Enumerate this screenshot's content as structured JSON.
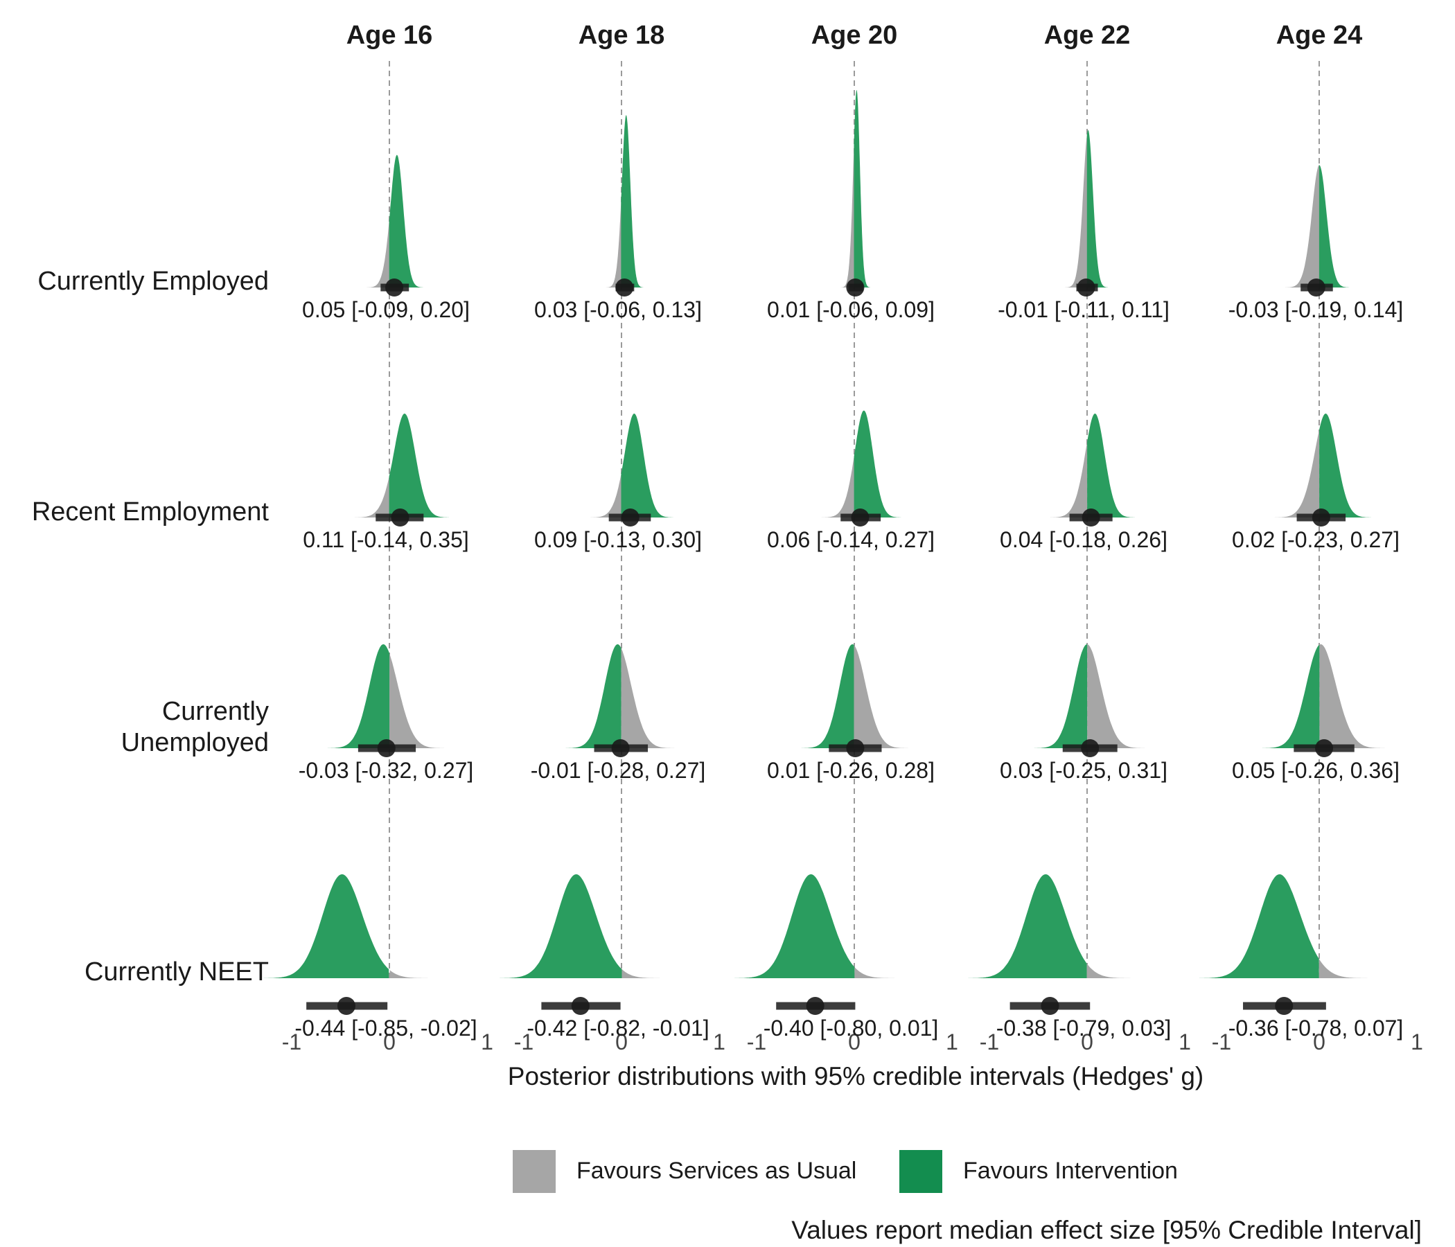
{
  "chart_data": {
    "type": "area",
    "panels": [
      "Age 16",
      "Age 18",
      "Age 20",
      "Age 22",
      "Age 24"
    ],
    "rows": [
      "Currently Employed",
      "Recent Employment",
      "Currently Unemployed",
      "Currently NEET"
    ],
    "xlabel": "Posterior distributions with 95% credible intervals (Hedges' g)",
    "xlim": [
      -1,
      1
    ],
    "x_ticks": [
      "-1",
      "0",
      "1"
    ],
    "caption": "Values report median effect size [95% Credible Interval]",
    "legend": {
      "position": "bottom",
      "items": [
        {
          "label": "Favours Services as Usual",
          "color": "#a6a6a6"
        },
        {
          "label": "Favours Intervention",
          "color": "#138d4f"
        }
      ]
    },
    "colors": {
      "services": "#a6a6a6",
      "intervention": "#2a9d5f",
      "reference_line": "#9a9a9a",
      "point": "#1a1a1a"
    },
    "reference_value": 0,
    "estimates": [
      {
        "row": "Currently Employed",
        "age": "Age 16",
        "median": 0.05,
        "lower": -0.09,
        "upper": 0.2,
        "label": "0.05 [-0.09, 0.20]",
        "favourable": "positive"
      },
      {
        "row": "Currently Employed",
        "age": "Age 18",
        "median": 0.03,
        "lower": -0.06,
        "upper": 0.13,
        "label": "0.03 [-0.06, 0.13]",
        "favourable": "positive"
      },
      {
        "row": "Currently Employed",
        "age": "Age 20",
        "median": 0.01,
        "lower": -0.06,
        "upper": 0.09,
        "label": "0.01 [-0.06, 0.09]",
        "favourable": "positive"
      },
      {
        "row": "Currently Employed",
        "age": "Age 22",
        "median": -0.01,
        "lower": -0.11,
        "upper": 0.11,
        "label": "-0.01 [-0.11, 0.11]",
        "favourable": "positive"
      },
      {
        "row": "Currently Employed",
        "age": "Age 24",
        "median": -0.03,
        "lower": -0.19,
        "upper": 0.14,
        "label": "-0.03 [-0.19, 0.14]",
        "favourable": "positive"
      },
      {
        "row": "Recent Employment",
        "age": "Age 16",
        "median": 0.11,
        "lower": -0.14,
        "upper": 0.35,
        "label": "0.11 [-0.14, 0.35]",
        "favourable": "positive"
      },
      {
        "row": "Recent Employment",
        "age": "Age 18",
        "median": 0.09,
        "lower": -0.13,
        "upper": 0.3,
        "label": "0.09 [-0.13, 0.30]",
        "favourable": "positive"
      },
      {
        "row": "Recent Employment",
        "age": "Age 20",
        "median": 0.06,
        "lower": -0.14,
        "upper": 0.27,
        "label": "0.06 [-0.14, 0.27]",
        "favourable": "positive"
      },
      {
        "row": "Recent Employment",
        "age": "Age 22",
        "median": 0.04,
        "lower": -0.18,
        "upper": 0.26,
        "label": "0.04 [-0.18, 0.26]",
        "favourable": "positive"
      },
      {
        "row": "Recent Employment",
        "age": "Age 24",
        "median": 0.02,
        "lower": -0.23,
        "upper": 0.27,
        "label": "0.02 [-0.23, 0.27]",
        "favourable": "positive"
      },
      {
        "row": "Currently Unemployed",
        "age": "Age 16",
        "median": -0.03,
        "lower": -0.32,
        "upper": 0.27,
        "label": "-0.03 [-0.32, 0.27]",
        "favourable": "negative"
      },
      {
        "row": "Currently Unemployed",
        "age": "Age 18",
        "median": -0.01,
        "lower": -0.28,
        "upper": 0.27,
        "label": "-0.01 [-0.28, 0.27]",
        "favourable": "negative"
      },
      {
        "row": "Currently Unemployed",
        "age": "Age 20",
        "median": 0.01,
        "lower": -0.26,
        "upper": 0.28,
        "label": "0.01 [-0.26, 0.28]",
        "favourable": "negative"
      },
      {
        "row": "Currently Unemployed",
        "age": "Age 22",
        "median": 0.03,
        "lower": -0.25,
        "upper": 0.31,
        "label": "0.03 [-0.25, 0.31]",
        "favourable": "negative"
      },
      {
        "row": "Currently Unemployed",
        "age": "Age 24",
        "median": 0.05,
        "lower": -0.26,
        "upper": 0.36,
        "label": "0.05 [-0.26, 0.36]",
        "favourable": "negative"
      },
      {
        "row": "Currently NEET",
        "age": "Age 16",
        "median": -0.44,
        "lower": -0.85,
        "upper": -0.02,
        "label": "-0.44 [-0.85, -0.02]",
        "favourable": "negative"
      },
      {
        "row": "Currently NEET",
        "age": "Age 18",
        "median": -0.42,
        "lower": -0.82,
        "upper": -0.01,
        "label": "-0.42 [-0.82, -0.01]",
        "favourable": "negative"
      },
      {
        "row": "Currently NEET",
        "age": "Age 20",
        "median": -0.4,
        "lower": -0.8,
        "upper": 0.01,
        "label": "-0.40 [-0.80, 0.01]",
        "favourable": "negative"
      },
      {
        "row": "Currently NEET",
        "age": "Age 22",
        "median": -0.38,
        "lower": -0.79,
        "upper": 0.03,
        "label": "-0.38 [-0.79, 0.03]",
        "favourable": "negative"
      },
      {
        "row": "Currently NEET",
        "age": "Age 24",
        "median": -0.36,
        "lower": -0.78,
        "upper": 0.07,
        "label": "-0.36 [-0.78, 0.07]",
        "favourable": "negative"
      }
    ]
  }
}
